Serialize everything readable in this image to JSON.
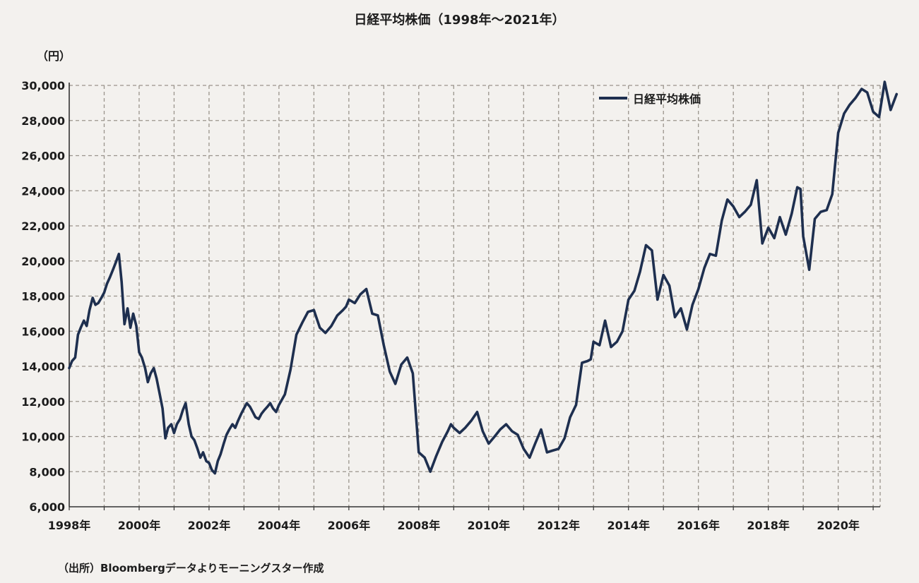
{
  "chart_data": {
    "type": "line",
    "title": "日経平均株価（1998年〜2021年）",
    "unit": "（円）",
    "source": "（出所）Bloombergデータよりモーニングスター作成",
    "ylim": [
      6000,
      30000
    ],
    "y_ticks": [
      6000,
      8000,
      10000,
      12000,
      14000,
      16000,
      18000,
      20000,
      22000,
      24000,
      26000,
      28000,
      30000
    ],
    "y_tick_labels": [
      "6,000",
      "8,000",
      "10,000",
      "12,000",
      "14,000",
      "16,000",
      "18,000",
      "20,000",
      "22,000",
      "24,000",
      "26,000",
      "28,000",
      "30,000"
    ],
    "xlim": [
      1998.0,
      2021.2
    ],
    "x_ticks": [
      1998,
      2000,
      2002,
      2004,
      2006,
      2008,
      2010,
      2012,
      2014,
      2016,
      2018,
      2020
    ],
    "x_tick_labels": [
      "1998年",
      "2000年",
      "2002年",
      "2004年",
      "2006年",
      "2008年",
      "2010年",
      "2012年",
      "2014年",
      "2016年",
      "2018年",
      "2020年"
    ],
    "grid": true,
    "legend_position": "top-right",
    "colors": {
      "line": "#1e2f4f",
      "grid": "#9a948c",
      "axis": "#333333"
    },
    "series": [
      {
        "name": "日経平均株価",
        "x": [
          1998.0,
          1998.08,
          1998.17,
          1998.25,
          1998.33,
          1998.42,
          1998.5,
          1998.58,
          1998.67,
          1998.75,
          1998.83,
          1998.92,
          1999.0,
          1999.08,
          1999.17,
          1999.25,
          1999.33,
          1999.42,
          1999.5,
          1999.58,
          1999.67,
          1999.75,
          1999.83,
          1999.92,
          2000.0,
          2000.08,
          2000.17,
          2000.25,
          2000.33,
          2000.42,
          2000.5,
          2000.58,
          2000.67,
          2000.75,
          2000.83,
          2000.92,
          2001.0,
          2001.08,
          2001.17,
          2001.25,
          2001.33,
          2001.42,
          2001.5,
          2001.58,
          2001.67,
          2001.75,
          2001.83,
          2001.92,
          2002.0,
          2002.08,
          2002.17,
          2002.25,
          2002.33,
          2002.42,
          2002.5,
          2002.58,
          2002.67,
          2002.75,
          2002.83,
          2002.92,
          2003.0,
          2003.08,
          2003.17,
          2003.25,
          2003.33,
          2003.42,
          2003.5,
          2003.58,
          2003.67,
          2003.75,
          2003.83,
          2003.92,
          2004.0,
          2004.17,
          2004.33,
          2004.5,
          2004.67,
          2004.83,
          2005.0,
          2005.17,
          2005.33,
          2005.5,
          2005.67,
          2005.83,
          2005.92,
          2006.0,
          2006.17,
          2006.33,
          2006.5,
          2006.67,
          2006.83,
          2007.0,
          2007.17,
          2007.33,
          2007.5,
          2007.67,
          2007.83,
          2007.92,
          2008.0,
          2008.17,
          2008.33,
          2008.5,
          2008.67,
          2008.83,
          2008.92,
          2009.0,
          2009.17,
          2009.33,
          2009.5,
          2009.67,
          2009.83,
          2010.0,
          2010.17,
          2010.33,
          2010.5,
          2010.67,
          2010.83,
          2011.0,
          2011.17,
          2011.33,
          2011.5,
          2011.67,
          2011.83,
          2012.0,
          2012.17,
          2012.33,
          2012.5,
          2012.67,
          2012.83,
          2012.92,
          2013.0,
          2013.17,
          2013.33,
          2013.5,
          2013.67,
          2013.83,
          2014.0,
          2014.17,
          2014.33,
          2014.5,
          2014.67,
          2014.83,
          2015.0,
          2015.17,
          2015.33,
          2015.5,
          2015.67,
          2015.83,
          2016.0,
          2016.17,
          2016.33,
          2016.5,
          2016.67,
          2016.83,
          2017.0,
          2017.17,
          2017.33,
          2017.5,
          2017.67,
          2017.83,
          2018.0,
          2018.17,
          2018.33,
          2018.5,
          2018.67,
          2018.83,
          2018.92,
          2019.0,
          2019.17,
          2019.33,
          2019.5,
          2019.67,
          2019.83,
          2020.0,
          2020.17,
          2020.33,
          2020.5,
          2020.67,
          2020.83,
          2021.0,
          2021.17,
          2021.33,
          2021.5,
          2021.67
        ],
        "values": [
          13900,
          14300,
          14500,
          15800,
          16200,
          16600,
          16300,
          17200,
          17900,
          17500,
          17600,
          17900,
          18200,
          18700,
          19100,
          19500,
          19900,
          20400,
          18800,
          16400,
          17300,
          16200,
          17000,
          16300,
          14800,
          14500,
          13900,
          13100,
          13600,
          13900,
          13300,
          12500,
          11600,
          9900,
          10500,
          10700,
          10200,
          10700,
          11000,
          11500,
          11900,
          10700,
          10000,
          9800,
          9300,
          8800,
          9100,
          8600,
          8500,
          8100,
          7900,
          8600,
          9000,
          9600,
          10100,
          10400,
          10700,
          10500,
          10900,
          11300,
          11600,
          11900,
          11700,
          11400,
          11100,
          11000,
          11300,
          11500,
          11700,
          11900,
          11600,
          11400,
          11800,
          12400,
          13800,
          15800,
          16500,
          17100,
          17200,
          16200,
          15900,
          16300,
          16900,
          17200,
          17400,
          17800,
          17600,
          18100,
          18400,
          17000,
          16900,
          15200,
          13700,
          13000,
          14100,
          14500,
          13600,
          11200,
          9100,
          8800,
          8000,
          8900,
          9700,
          10300,
          10700,
          10500,
          10200,
          10500,
          10900,
          11400,
          10300,
          9600,
          10000,
          10400,
          10700,
          10300,
          10100,
          9300,
          8800,
          9600,
          10400,
          9100,
          9200,
          9300,
          9900,
          11100,
          11800,
          14200,
          14300,
          14400,
          15400,
          15200,
          16600,
          15100,
          15400,
          16000,
          17800,
          18300,
          19400,
          20900,
          20600,
          17800,
          19200,
          18600,
          16800,
          17300,
          16100,
          17500,
          18400,
          19600,
          20400,
          20300,
          22300,
          23500,
          23100,
          22500,
          22800,
          23200,
          24600,
          21000,
          21900,
          21300,
          22500,
          21500,
          22700,
          24200,
          24100,
          21400,
          19500,
          22400,
          22800,
          22900,
          23800,
          27300,
          28400,
          28900,
          29300,
          29800,
          29600,
          28500,
          28200,
          30200,
          28600,
          29500
        ]
      }
    ]
  }
}
